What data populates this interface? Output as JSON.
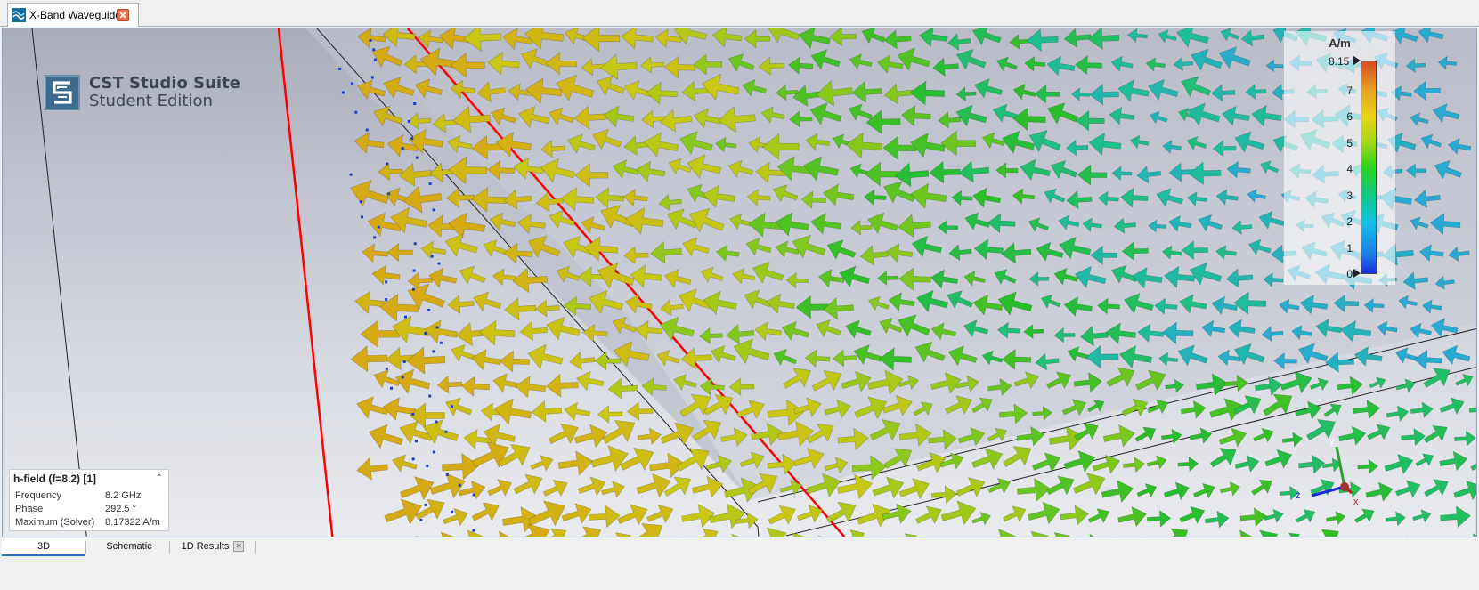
{
  "window": {
    "doc_tab_label": "X-Band Waveguide"
  },
  "logo": {
    "title": "CST Studio Suite",
    "subtitle": "Student Edition"
  },
  "legend": {
    "unit": "A/m",
    "max_label": "8.15",
    "ticks": [
      "7",
      "6",
      "5",
      "4",
      "3",
      "2",
      "1",
      "0"
    ]
  },
  "info_panel": {
    "title": "h-field (f=8.2) [1]",
    "rows": [
      {
        "label": "Frequency",
        "value": "8.2 GHz"
      },
      {
        "label": "Phase",
        "value": "292.5 °"
      },
      {
        "label": "Maximum (Solver)",
        "value": "8.17322 A/m"
      }
    ]
  },
  "bottom_tabs": [
    {
      "label": "3D",
      "active": true
    },
    {
      "label": "Schematic",
      "active": false
    },
    {
      "label": "1D Results",
      "active": false
    }
  ],
  "axis_triad": {
    "y": "y",
    "z": "z",
    "x": "x"
  },
  "colors": {
    "accent": "#2a6dc0",
    "edge_highlight": "#ff0000",
    "close_button": "#e56f4b"
  }
}
